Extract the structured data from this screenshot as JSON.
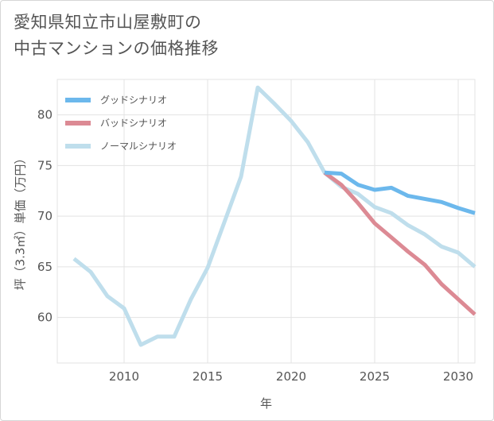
{
  "title": {
    "line1": "愛知県知立市山屋敷町の",
    "line2": "中古マンションの価格推移"
  },
  "chart_data": {
    "type": "line",
    "xlabel": "年",
    "ylabel": "坪（3.3㎡）単価（万円）",
    "xlim": [
      2006,
      2031
    ],
    "ylim": [
      55.5,
      83.5
    ],
    "xticks": [
      2010,
      2015,
      2020,
      2025,
      2030
    ],
    "yticks": [
      60,
      65,
      70,
      75,
      80
    ],
    "grid": true,
    "legend_position": "top-left",
    "series": [
      {
        "name": "グッドシナリオ",
        "color": "#6cb8ec",
        "points": [
          [
            2022,
            74.3
          ],
          [
            2023,
            74.2
          ],
          [
            2024,
            73.1
          ],
          [
            2025,
            72.6
          ],
          [
            2026,
            72.8
          ],
          [
            2027,
            72.0
          ],
          [
            2028,
            71.7
          ],
          [
            2029,
            71.4
          ],
          [
            2030,
            70.8
          ],
          [
            2031,
            70.3
          ]
        ]
      },
      {
        "name": "バッドシナリオ",
        "color": "#dc8a94",
        "points": [
          [
            2022,
            74.3
          ],
          [
            2023,
            73.1
          ],
          [
            2024,
            71.3
          ],
          [
            2025,
            69.3
          ],
          [
            2026,
            67.9
          ],
          [
            2027,
            66.5
          ],
          [
            2028,
            65.2
          ],
          [
            2029,
            63.3
          ],
          [
            2030,
            61.8
          ],
          [
            2031,
            60.3
          ]
        ]
      },
      {
        "name": "ノーマルシナリオ",
        "color": "#bfdeec",
        "points": [
          [
            2007,
            65.8
          ],
          [
            2008,
            64.5
          ],
          [
            2009,
            62.1
          ],
          [
            2010,
            60.9
          ],
          [
            2011,
            57.3
          ],
          [
            2012,
            58.1
          ],
          [
            2013,
            58.1
          ],
          [
            2014,
            61.8
          ],
          [
            2015,
            64.9
          ],
          [
            2016,
            69.4
          ],
          [
            2017,
            73.9
          ],
          [
            2018,
            82.7
          ],
          [
            2019,
            81.1
          ],
          [
            2020,
            79.4
          ],
          [
            2021,
            77.3
          ],
          [
            2022,
            74.3
          ],
          [
            2023,
            72.9
          ],
          [
            2024,
            72.2
          ],
          [
            2025,
            70.9
          ],
          [
            2026,
            70.3
          ],
          [
            2027,
            69.1
          ],
          [
            2028,
            68.2
          ],
          [
            2029,
            67.0
          ],
          [
            2030,
            66.4
          ],
          [
            2031,
            65.0
          ]
        ]
      }
    ]
  }
}
